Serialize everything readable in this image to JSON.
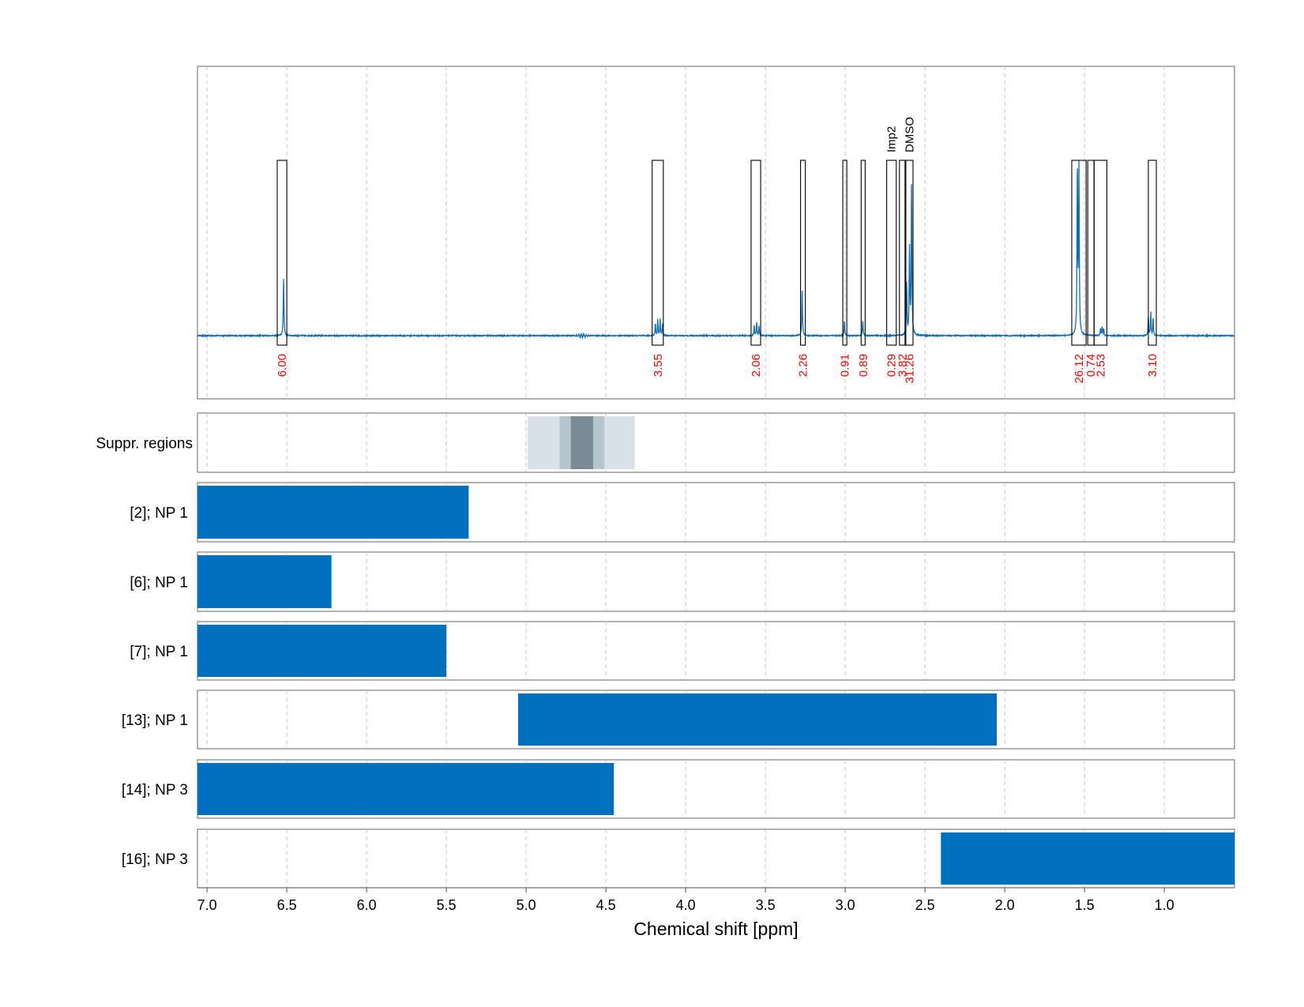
{
  "chart_data": {
    "type": "nmr-spectrum",
    "xlabel": "Chemical shift [ppm]",
    "xlim": [
      7.06,
      0.56
    ],
    "x_ticks": [
      7.0,
      6.5,
      6.0,
      5.5,
      5.0,
      4.5,
      4.0,
      3.5,
      3.0,
      2.5,
      2.0,
      1.5,
      1.0
    ],
    "x_tick_labels": [
      "7.0",
      "6.5",
      "6.0",
      "5.5",
      "5.0",
      "4.5",
      "4.0",
      "3.5",
      "3.0",
      "2.5",
      "2.0",
      "1.5",
      "1.0"
    ],
    "grid": true,
    "spectrum_color": "#0c6eb9",
    "integral_label_color": "#ff0000",
    "peaks": [
      {
        "ppm": 6.52,
        "height": 0.33
      },
      {
        "ppm": 4.17,
        "height": 0.095,
        "multiplet": [
          4.19,
          4.175,
          4.16,
          4.145
        ]
      },
      {
        "ppm": 3.55,
        "height": 0.075,
        "multiplet": [
          3.57,
          3.555,
          3.54
        ]
      },
      {
        "ppm": 3.27,
        "height": 0.26
      },
      {
        "ppm": 3.005,
        "height": 0.085
      },
      {
        "ppm": 2.89,
        "height": 0.085
      },
      {
        "ppm": 2.615,
        "height": 0.3
      },
      {
        "ppm": 2.597,
        "height": 0.5
      },
      {
        "ppm": 2.584,
        "height": 0.86
      },
      {
        "ppm": 1.545,
        "height": 0.97
      },
      {
        "ppm": 1.535,
        "height": 0.95
      },
      {
        "ppm": 1.39,
        "height": 0.05,
        "multiplet": [
          1.4,
          1.39,
          1.38
        ]
      },
      {
        "ppm": 1.09,
        "height": 0.14,
        "multiplet": [
          1.1,
          1.085,
          1.07
        ]
      }
    ],
    "suppression_ripple_ppm": 4.65,
    "integration_regions": [
      {
        "from": 6.56,
        "to": 6.5,
        "label": "6.00"
      },
      {
        "from": 4.21,
        "to": 4.14,
        "label": "3.55"
      },
      {
        "from": 3.59,
        "to": 3.53,
        "label": "2.06"
      },
      {
        "from": 3.28,
        "to": 3.25,
        "label": "2.26"
      },
      {
        "from": 3.015,
        "to": 2.99,
        "label": "0.91"
      },
      {
        "from": 2.9,
        "to": 2.875,
        "label": "0.89"
      },
      {
        "from": 2.74,
        "to": 2.68,
        "label": "0.29",
        "name": "Imp2"
      },
      {
        "from": 2.66,
        "to": 2.625,
        "label": "3.82"
      },
      {
        "from": 2.62,
        "to": 2.575,
        "label": "31.26",
        "name": "DMSO"
      },
      {
        "from": 1.58,
        "to": 1.49,
        "label": "26.12"
      },
      {
        "from": 1.48,
        "to": 1.44,
        "label": "0.74"
      },
      {
        "from": 1.44,
        "to": 1.36,
        "label": "2.53"
      },
      {
        "from": 1.1,
        "to": 1.05,
        "label": "3.10"
      }
    ],
    "suppression_regions": {
      "label": "Suppr. regions",
      "bands": [
        {
          "from": 4.99,
          "to": 4.32,
          "color": "#d9e1e8"
        },
        {
          "from": 4.79,
          "to": 4.51,
          "color": "#b6c5cd"
        },
        {
          "from": 4.72,
          "to": 4.58,
          "color": "#7b8b95"
        }
      ]
    },
    "bar_color": "#0070bf",
    "bar_rows": [
      {
        "label": "[2]; NP 1",
        "from": 7.06,
        "to": 5.36
      },
      {
        "label": "[6]; NP 1",
        "from": 7.06,
        "to": 6.22
      },
      {
        "label": "[7]; NP 1",
        "from": 7.06,
        "to": 5.5
      },
      {
        "label": "[13]; NP 1",
        "from": 5.05,
        "to": 2.05
      },
      {
        "label": "[14]; NP 3",
        "from": 7.06,
        "to": 4.45
      },
      {
        "label": "[16]; NP 3",
        "from": 2.4,
        "to": 0.56
      }
    ]
  }
}
